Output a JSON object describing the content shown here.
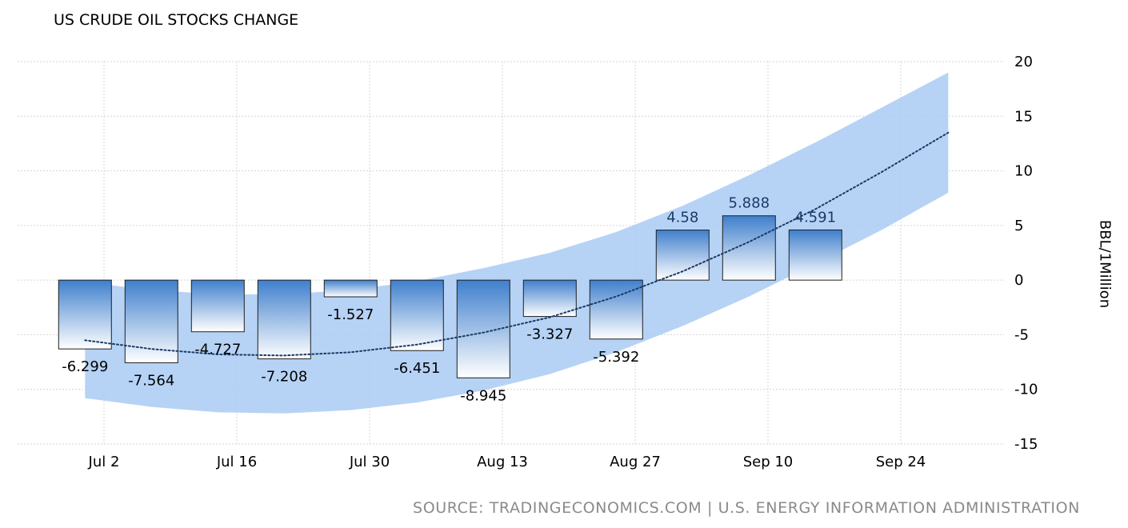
{
  "title": "US CRUDE OIL STOCKS CHANGE",
  "source": "SOURCE:  TRADINGECONOMICS.COM  |  U.S.  ENERGY  INFORMATION  ADMINISTRATION",
  "colors": {
    "bar_top": "#3f7fcc",
    "bar_bottom": "#ffffff",
    "band": "#a9cbf5",
    "trend": "#1b3a66",
    "grid": "#d6d6d6",
    "source_text": "#8a8a8a"
  },
  "chart_data": {
    "type": "bar",
    "title": "US CRUDE OIL STOCKS CHANGE",
    "xlabel": "",
    "ylabel": "BBL/1Million",
    "ylim": [
      -15,
      20
    ],
    "y_ticks": [
      20,
      15,
      10,
      5,
      0,
      -5,
      -10,
      -15
    ],
    "x_ticks": [
      "Jul 2",
      "Jul 16",
      "Jul 30",
      "Aug 13",
      "Aug 27",
      "Sep 10",
      "Sep 24"
    ],
    "x_tick_day_index": [
      0,
      14,
      28,
      42,
      56,
      70,
      84
    ],
    "bar_day_index": [
      -2,
      5,
      12,
      19,
      26,
      33,
      40,
      47,
      54,
      61,
      68,
      75
    ],
    "values": [
      -6.299,
      -7.564,
      -4.727,
      -7.208,
      -1.527,
      -6.451,
      -8.945,
      -3.327,
      -5.392,
      4.58,
      5.888,
      4.591
    ],
    "value_labels": [
      "-6.299",
      "-7.564",
      "-4.727",
      "-7.208",
      "-1.527",
      "-6.451",
      "-8.945",
      "-3.327",
      "-5.392",
      "4.58",
      "5.888",
      "4.591"
    ],
    "trend_line": {
      "style": "dotted",
      "day_index": [
        -2,
        5,
        12,
        19,
        26,
        33,
        40,
        47,
        54,
        61,
        68,
        75,
        82,
        89
      ],
      "values": [
        -5.5,
        -6.3,
        -6.8,
        -6.9,
        -6.6,
        -5.9,
        -4.8,
        -3.4,
        -1.5,
        0.8,
        3.5,
        6.5,
        9.9,
        13.5
      ]
    },
    "forecast_band": {
      "day_index": [
        -2,
        5,
        12,
        19,
        26,
        33,
        40,
        47,
        54,
        61,
        68,
        75,
        82,
        89
      ],
      "upper": [
        -0.2,
        -0.9,
        -1.3,
        -1.3,
        -0.9,
        -0.1,
        1.1,
        2.5,
        4.4,
        6.8,
        9.6,
        12.6,
        15.8,
        19.0
      ],
      "lower": [
        -10.8,
        -11.6,
        -12.1,
        -12.2,
        -11.9,
        -11.2,
        -10.1,
        -8.6,
        -6.6,
        -4.2,
        -1.5,
        1.5,
        4.6,
        8.0
      ]
    },
    "grid": true,
    "legend": "none"
  }
}
